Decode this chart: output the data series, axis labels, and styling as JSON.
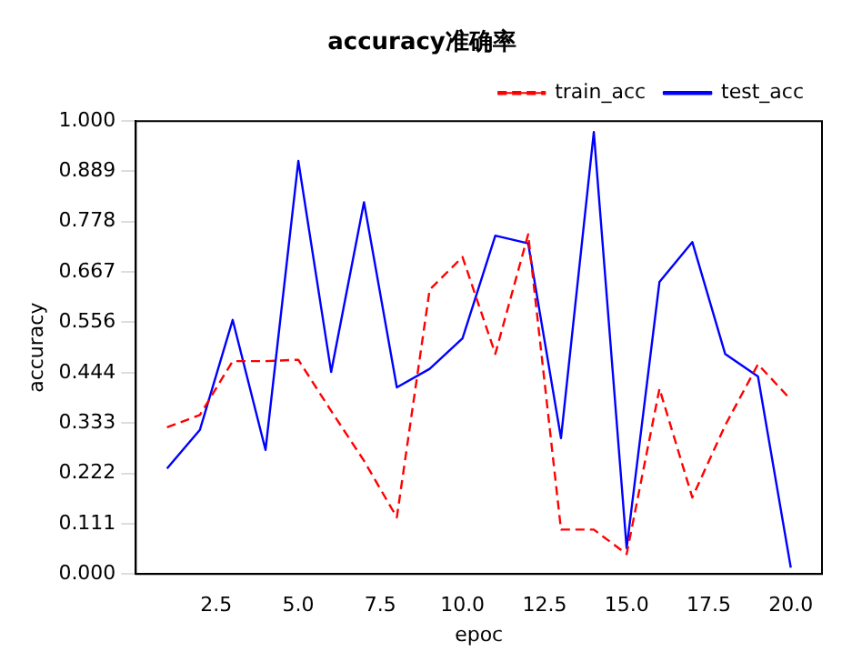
{
  "chart_data": {
    "type": "line",
    "title": "accuracy准确率",
    "xlabel": "epoc",
    "ylabel": "accuracy",
    "x": [
      1,
      2,
      3,
      4,
      5,
      6,
      7,
      8,
      9,
      10,
      11,
      12,
      13,
      14,
      15,
      16,
      17,
      18,
      19,
      20
    ],
    "series": [
      {
        "name": "train_acc",
        "color": "#ff0000",
        "line_style": "dashed",
        "values": [
          0.324,
          0.351,
          0.47,
          0.47,
          0.473,
          0.36,
          0.25,
          0.125,
          0.628,
          0.7,
          0.486,
          0.75,
          0.098,
          0.098,
          0.044,
          0.409,
          0.169,
          0.328,
          0.463,
          0.385
        ]
      },
      {
        "name": "test_acc",
        "color": "#0000ff",
        "line_style": "solid",
        "values": [
          0.233,
          0.318,
          0.561,
          0.274,
          0.912,
          0.446,
          0.821,
          0.412,
          0.453,
          0.52,
          0.747,
          0.73,
          0.3,
          0.976,
          0.057,
          0.645,
          0.733,
          0.486,
          0.436,
          0.014
        ]
      }
    ],
    "xlim": [
      0.05,
      20.95
    ],
    "xticks": [
      {
        "value": 2.5,
        "label": "2.5"
      },
      {
        "value": 5,
        "label": "5.0"
      },
      {
        "value": 7.5,
        "label": "7.5"
      },
      {
        "value": 10,
        "label": "10.0"
      },
      {
        "value": 12.5,
        "label": "12.5"
      },
      {
        "value": 15,
        "label": "15.0"
      },
      {
        "value": 17.5,
        "label": "17.5"
      },
      {
        "value": 20,
        "label": "20.0"
      }
    ],
    "ylim": [
      0,
      1
    ],
    "yticks": [
      {
        "value": 0,
        "label": "0.000"
      },
      {
        "value": 0.111,
        "label": "0.111"
      },
      {
        "value": 0.222,
        "label": "0.222"
      },
      {
        "value": 0.333,
        "label": "0.333"
      },
      {
        "value": 0.444,
        "label": "0.444"
      },
      {
        "value": 0.556,
        "label": "0.556"
      },
      {
        "value": 0.667,
        "label": "0.667"
      },
      {
        "value": 0.778,
        "label": "0.778"
      },
      {
        "value": 0.889,
        "label": "0.889"
      },
      {
        "value": 1,
        "label": "1.000"
      }
    ],
    "grid": false,
    "legend": "top right",
    "marker": "none"
  }
}
